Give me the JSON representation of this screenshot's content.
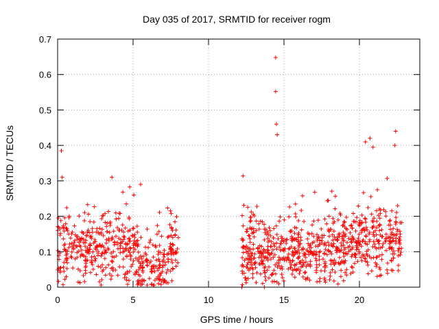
{
  "chart_data": {
    "type": "scatter",
    "title": "Day 035 of 2017, SRMTID for receiver rogm",
    "xlabel": "GPS time / hours",
    "ylabel": "SRMTID / TECUs",
    "xlim": [
      0,
      24
    ],
    "ylim": [
      0,
      0.7
    ],
    "xticks": [
      0,
      5,
      10,
      15,
      20
    ],
    "xtick_labels": [
      "0",
      "5",
      "10",
      "15",
      "20"
    ],
    "yticks": [
      0,
      0.1,
      0.2,
      0.3,
      0.4,
      0.5,
      0.6,
      0.7
    ],
    "ytick_labels": [
      "0",
      "0.1",
      "0.2",
      "0.3",
      "0.4",
      "0.5",
      "0.6",
      "0.7"
    ],
    "grid": true,
    "marker": "+",
    "color": "#ff0000",
    "series": [
      {
        "name": "SRMTID",
        "segments": [
          {
            "x_range": [
              0.0,
              8.0
            ],
            "typical_range": [
              0.0,
              0.3
            ],
            "notable_points": [
              [
                0.25,
                0.385
              ],
              [
                0.3,
                0.31
              ],
              [
                3.6,
                0.31
              ],
              [
                5.5,
                0.29
              ]
            ]
          },
          {
            "x_range": [
              12.2,
              22.8
            ],
            "typical_range": [
              0.0,
              0.3
            ],
            "notable_points": [
              [
                12.2,
                0.0
              ],
              [
                13.7,
                0.0
              ],
              [
                14.45,
                0.648
              ],
              [
                14.45,
                0.552
              ],
              [
                14.5,
                0.46
              ],
              [
                14.55,
                0.43
              ],
              [
                20.7,
                0.42
              ],
              [
                20.9,
                0.395
              ],
              [
                20.4,
                0.41
              ],
              [
                22.4,
                0.44
              ],
              [
                22.35,
                0.4
              ]
            ]
          }
        ]
      }
    ]
  }
}
